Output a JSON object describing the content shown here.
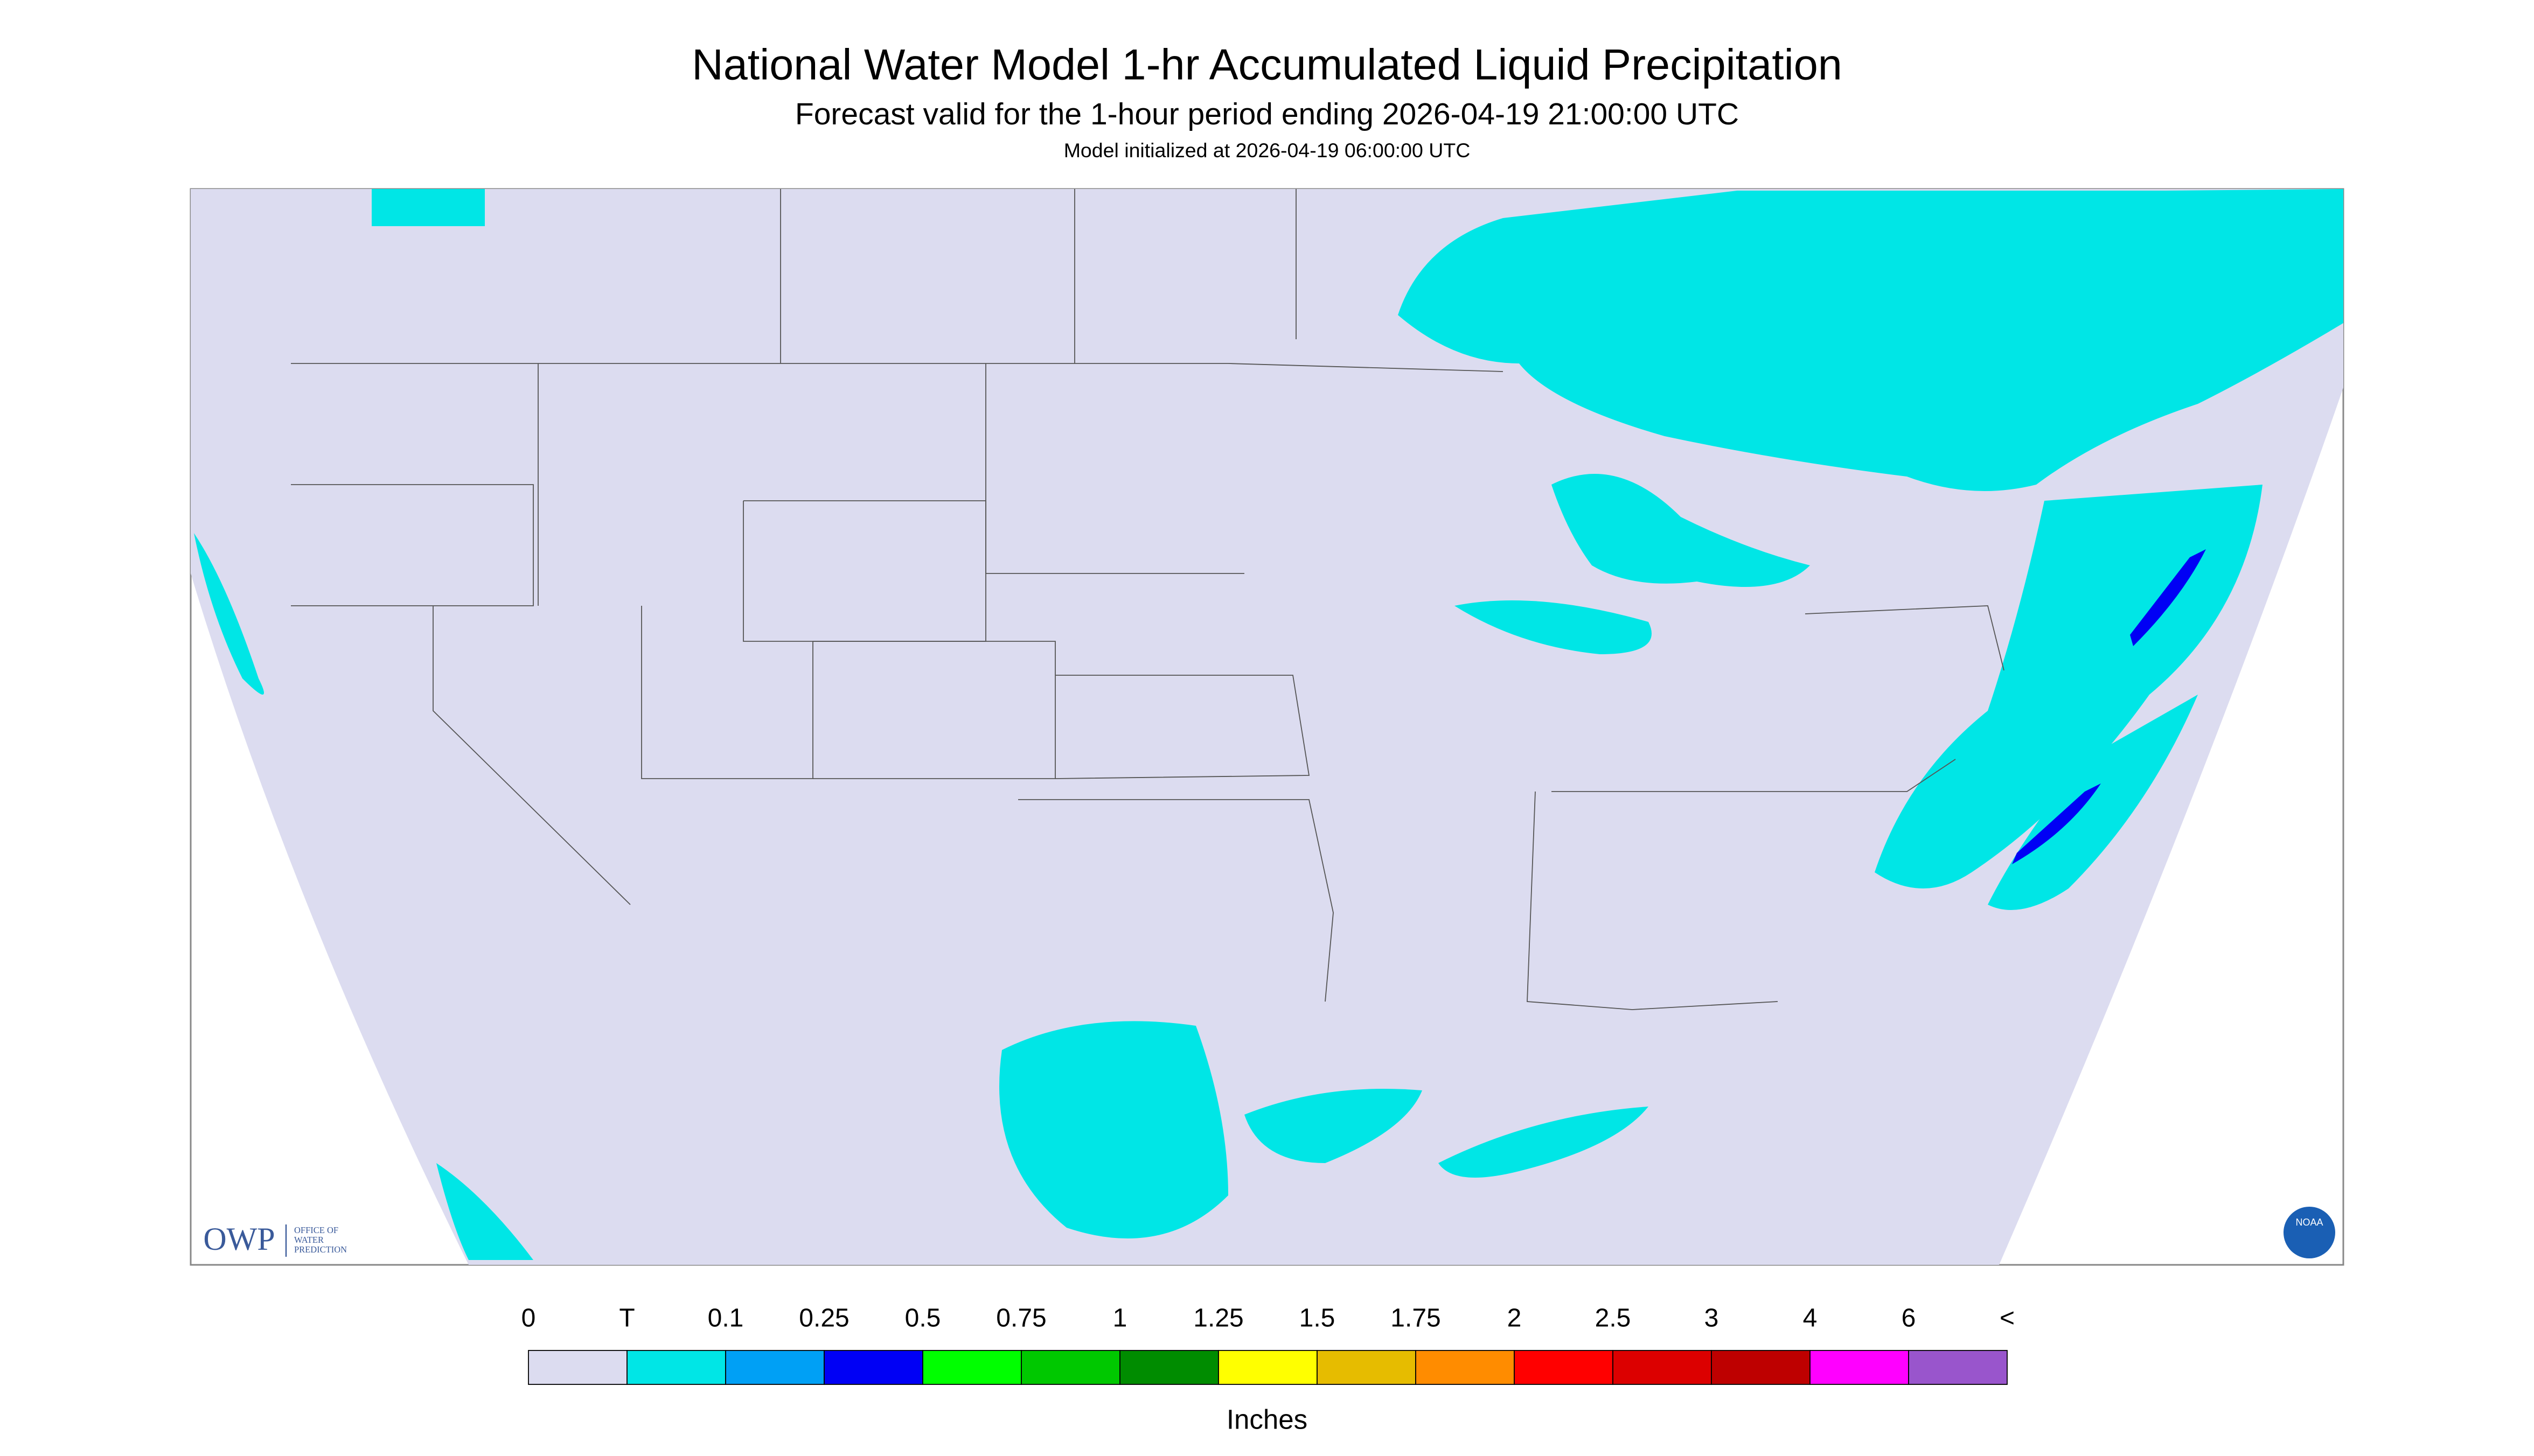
{
  "header": {
    "title": "National Water Model 1-hr Accumulated Liquid Precipitation",
    "subtitle": "Forecast valid for the 1-hour period ending 2026-04-19 21:00:00 UTC",
    "init": "Model initialized at 2026-04-19 06:00:00 UTC"
  },
  "legend": {
    "labels": [
      "0",
      "T",
      "0.1",
      "0.25",
      "0.5",
      "0.75",
      "1",
      "1.25",
      "1.5",
      "1.75",
      "2",
      "2.5",
      "3",
      "4",
      "6",
      "<"
    ],
    "colors": [
      "#dcdcf0",
      "#00e6e6",
      "#00a0f5",
      "#0000f5",
      "#00ff00",
      "#00c800",
      "#008c00",
      "#ffff00",
      "#e6bc00",
      "#ff8c00",
      "#ff0000",
      "#dc0000",
      "#be0000",
      "#ff00ff",
      "#9955cc"
    ],
    "units": "Inches"
  },
  "logos": {
    "owp": "OWP",
    "owp_sub": [
      "OFFICE OF",
      "WATER",
      "PREDICTION"
    ],
    "noaa": "NOAA"
  }
}
